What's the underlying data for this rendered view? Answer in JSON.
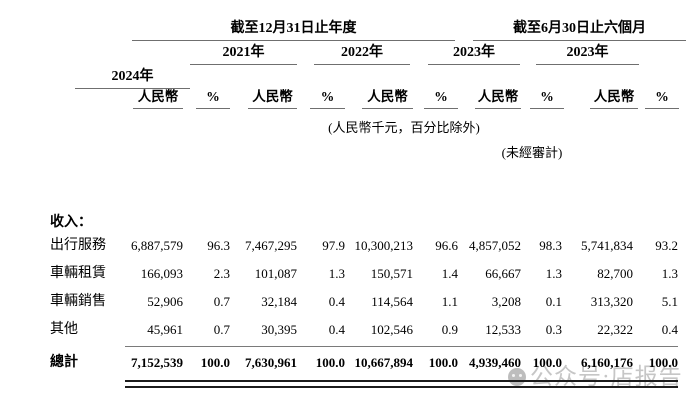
{
  "table": {
    "period_groups": [
      {
        "label": "截至12月31日止年度"
      },
      {
        "label": "截至6月30日止六個月"
      }
    ],
    "years": [
      "2021年",
      "2022年",
      "2023年",
      "2023年",
      "2024年"
    ],
    "subheaders": {
      "currency": "人民幣",
      "percent": "%"
    },
    "notes": {
      "units": "(人民幣千元，百分比除外)",
      "unaudited": "(未經審計)"
    },
    "section_label": "收入：",
    "rows": [
      {
        "label": "出行服務",
        "values": [
          "6,887,579",
          "96.3",
          "7,467,295",
          "97.9",
          "10,300,213",
          "96.6",
          "4,857,052",
          "98.3",
          "5,741,834",
          "93.2"
        ]
      },
      {
        "label": "車輛租賃",
        "values": [
          "166,093",
          "2.3",
          "101,087",
          "1.3",
          "150,571",
          "1.4",
          "66,667",
          "1.3",
          "82,700",
          "1.3"
        ]
      },
      {
        "label": "車輛銷售",
        "values": [
          "52,906",
          "0.7",
          "32,184",
          "0.4",
          "114,564",
          "1.1",
          "3,208",
          "0.1",
          "313,320",
          "5.1"
        ]
      },
      {
        "label": "其他",
        "values": [
          "45,961",
          "0.7",
          "30,395",
          "0.4",
          "102,546",
          "0.9",
          "12,533",
          "0.3",
          "22,322",
          "0.4"
        ]
      }
    ],
    "total": {
      "label": "總計",
      "values": [
        "7,152,539",
        "100.0",
        "7,630,961",
        "100.0",
        "10,667,894",
        "100.0",
        "4,939,460",
        "100.0",
        "6,160,176",
        "100.0"
      ]
    }
  },
  "watermark": {
    "text": "公众号·店报告",
    "icon": "panda-face-icon"
  },
  "colors": {
    "text": "#000000",
    "rule_thin": "#6f6f6f",
    "rule_double": "#1c1c1c",
    "watermark": "#c6c6c6",
    "background": "#ffffff"
  }
}
